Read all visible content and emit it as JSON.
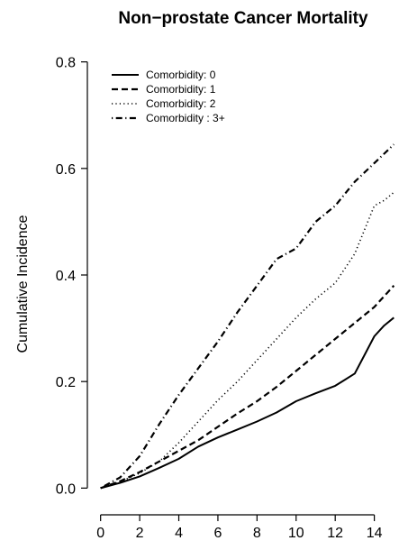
{
  "chart_data": {
    "type": "line",
    "title": "Non−prostate Cancer Mortality",
    "xlabel": "",
    "ylabel": "Cumulative Incidence",
    "xlim": [
      -0.4,
      15.4
    ],
    "ylim": [
      -0.04,
      0.84
    ],
    "xticks": [
      0,
      2,
      4,
      6,
      8,
      10,
      12,
      14
    ],
    "yticks": [
      0.0,
      0.2,
      0.4,
      0.6,
      0.8
    ],
    "ytick_labels": [
      "0.0",
      "0.2",
      "0.4",
      "0.6",
      "0.8"
    ],
    "grid": false,
    "legend_position": "top-left",
    "series": [
      {
        "name": "Comorbidity: 0",
        "dash": "solid",
        "x": [
          0,
          1,
          2,
          3,
          4,
          5,
          6,
          7,
          8,
          9,
          10,
          11,
          12,
          13,
          13.5,
          14,
          14.5,
          15
        ],
        "y": [
          0,
          0.01,
          0.022,
          0.038,
          0.055,
          0.078,
          0.095,
          0.11,
          0.125,
          0.142,
          0.163,
          0.178,
          0.192,
          0.215,
          0.25,
          0.285,
          0.305,
          0.32
        ]
      },
      {
        "name": "Comorbidity: 1",
        "dash": "dashed",
        "x": [
          0,
          1,
          2,
          3,
          4,
          5,
          6,
          7,
          8,
          9,
          10,
          11,
          12,
          13,
          14,
          15
        ],
        "y": [
          0,
          0.013,
          0.03,
          0.05,
          0.07,
          0.09,
          0.115,
          0.14,
          0.163,
          0.19,
          0.22,
          0.25,
          0.28,
          0.31,
          0.34,
          0.38
        ]
      },
      {
        "name": "Comorbidity: 2",
        "dash": "dotted",
        "x": [
          0,
          1,
          2,
          3,
          4,
          5,
          6,
          7,
          8,
          9,
          10,
          11,
          12,
          13,
          14,
          14.5,
          15
        ],
        "y": [
          0,
          0.012,
          0.028,
          0.05,
          0.085,
          0.125,
          0.165,
          0.2,
          0.24,
          0.28,
          0.32,
          0.355,
          0.385,
          0.44,
          0.53,
          0.54,
          0.555
        ]
      },
      {
        "name": "Comorbidity : 3+",
        "dash": "dotdash",
        "x": [
          0,
          1,
          2,
          3,
          4,
          5,
          6,
          7,
          8,
          9,
          10,
          11,
          12,
          13,
          14,
          15
        ],
        "y": [
          0,
          0.02,
          0.06,
          0.12,
          0.175,
          0.225,
          0.275,
          0.33,
          0.38,
          0.43,
          0.45,
          0.5,
          0.53,
          0.575,
          0.61,
          0.645
        ]
      }
    ]
  }
}
